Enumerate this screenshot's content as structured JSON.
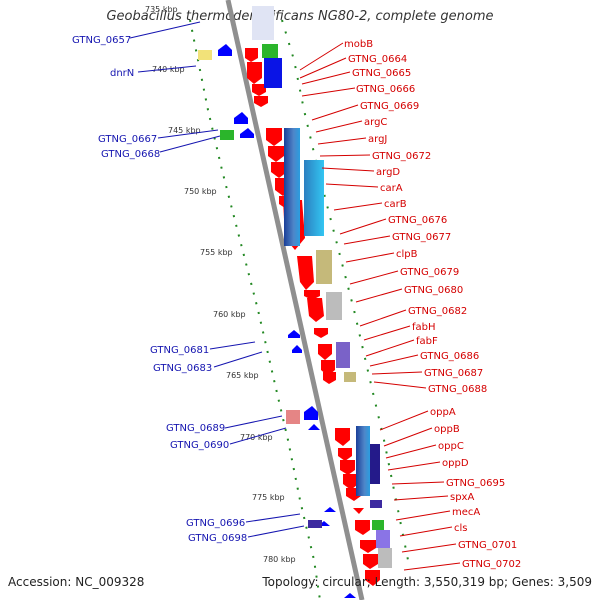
{
  "title": "Geobacillus thermodenitrificans NG80-2, complete genome",
  "accession": "Accession: NC_009328",
  "summary": "Topology: circular; Length: 3,550,319 bp; Genes: 3,509",
  "ticks": [
    "735 kbp",
    "740 kbp",
    "745 kbp",
    "750 kbp",
    "755 kbp",
    "760 kbp",
    "765 kbp",
    "770 kbp",
    "775 kbp",
    "780 kbp"
  ],
  "left_labels": [
    "GTNG_0657",
    "dnrN",
    "GTNG_0667",
    "GTNG_0668",
    "GTNG_0681",
    "GTNG_0683",
    "GTNG_0689",
    "GTNG_0690",
    "GTNG_0696",
    "GTNG_0698"
  ],
  "right_labels": [
    "mobB",
    "GTNG_0664",
    "GTNG_0665",
    "GTNG_0666",
    "GTNG_0669",
    "argC",
    "argJ",
    "GTNG_0672",
    "argD",
    "carA",
    "carB",
    "GTNG_0676",
    "GTNG_0677",
    "clpB",
    "GTNG_0679",
    "GTNG_0680",
    "GTNG_0682",
    "fabH",
    "fabF",
    "GTNG_0686",
    "GTNG_0687",
    "GTNG_0688",
    "oppA",
    "oppB",
    "oppC",
    "oppD",
    "GTNG_0695",
    "spxA",
    "mecA",
    "cls",
    "GTNG_0701",
    "GTNG_0702"
  ],
  "colors": {
    "forward_gene": "#ff0000",
    "reverse_gene": "#0000ff",
    "backbone": "#999999",
    "left_label": "#1515b0",
    "right_label": "#d40000"
  }
}
